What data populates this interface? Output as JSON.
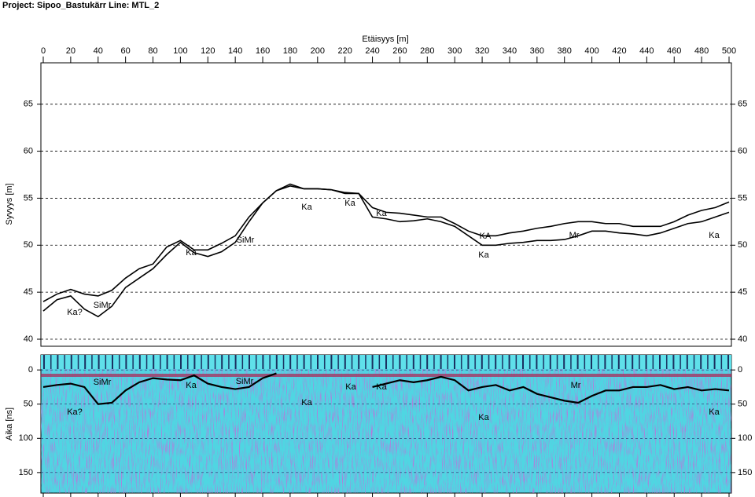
{
  "header": "Project: Sipoo_Bastukärr  Line: MTL_2",
  "chart_data": [
    {
      "type": "line",
      "x_label": "Etäisyys [m]",
      "y_label": "Syvyys [m]",
      "x": [
        0,
        10,
        20,
        30,
        40,
        50,
        60,
        70,
        80,
        90,
        100,
        110,
        120,
        130,
        140,
        150,
        160,
        170,
        180,
        190,
        200,
        210,
        220,
        230,
        240,
        250,
        260,
        270,
        280,
        290,
        300,
        310,
        320,
        330,
        340,
        350,
        360,
        370,
        380,
        390,
        400,
        410,
        420,
        430,
        440,
        450,
        460,
        470,
        480,
        490,
        500
      ],
      "xlim": [
        0,
        500
      ],
      "xticks": [
        0,
        20,
        40,
        60,
        80,
        100,
        120,
        140,
        160,
        180,
        200,
        220,
        240,
        260,
        280,
        300,
        320,
        340,
        360,
        380,
        400,
        420,
        440,
        460,
        480,
        500
      ],
      "ylim": [
        39.25,
        69.4
      ],
      "yticks": [
        40,
        45,
        50,
        55,
        60,
        65
      ],
      "grid": true,
      "series": [
        {
          "color": "#000000",
          "values": [
            44,
            44.8,
            45.3,
            44.8,
            44.6,
            45.2,
            46.5,
            47.5,
            48,
            49.8,
            50.5,
            49.5,
            49.5,
            50.2,
            51,
            53,
            54.5,
            55.8,
            56.3,
            56,
            56,
            55.9,
            55.6,
            55.5,
            54,
            53.5,
            53.4,
            53.2,
            53,
            53,
            52.3,
            51.5,
            51,
            51,
            51.3,
            51.5,
            51.8,
            52,
            52.3,
            52.5,
            52.5,
            52.3,
            52.3,
            52,
            52,
            52,
            52.5,
            53.2,
            53.7,
            54,
            54.6
          ]
        },
        {
          "color": "#000000",
          "values": [
            43,
            44.2,
            44.6,
            43.2,
            42.4,
            43.5,
            45.5,
            46.5,
            47.5,
            49,
            50.3,
            49.2,
            48.8,
            49.3,
            50.3,
            52.5,
            54.5,
            55.8,
            56.5,
            56,
            56,
            55.9,
            55.5,
            55.5,
            53,
            52.8,
            52.5,
            52.6,
            52.8,
            52.5,
            52,
            51,
            50,
            50,
            50.2,
            50.3,
            50.5,
            50.5,
            50.6,
            51,
            51.5,
            51.5,
            51.3,
            51.2,
            51,
            51.3,
            51.8,
            52.3,
            52.5,
            53,
            53.5
          ]
        }
      ],
      "annotations": [
        "Ka?",
        "SiMr",
        "Ka",
        "SiMr",
        "Ka",
        "Ka",
        "Ka",
        "KA",
        "Ka",
        "Mr",
        "Ka"
      ]
    },
    {
      "type": "line",
      "y_label": "Aika [ns]",
      "x": [
        0,
        10,
        20,
        30,
        40,
        50,
        60,
        70,
        80,
        90,
        100,
        110,
        120,
        130,
        140,
        150,
        160,
        170,
        180,
        190,
        200,
        210,
        220,
        230,
        240,
        250,
        260,
        270,
        280,
        290,
        300,
        310,
        320,
        330,
        340,
        350,
        360,
        370,
        380,
        390,
        400,
        410,
        420,
        430,
        440,
        450,
        460,
        470,
        480,
        490,
        500
      ],
      "xlim": [
        0,
        500
      ],
      "ylim": [
        180,
        -22
      ],
      "yticks": [
        0,
        50,
        100,
        150
      ],
      "grid": true,
      "series": [
        {
          "color": "#000000",
          "values": [
            25,
            22,
            20,
            25,
            50,
            48,
            30,
            18,
            12,
            14,
            15,
            8,
            20,
            25,
            28,
            25,
            12,
            5,
            null,
            null,
            null,
            null,
            null,
            null,
            25,
            20,
            15,
            18,
            15,
            10,
            15,
            30,
            25,
            22,
            30,
            25,
            35,
            40,
            45,
            48,
            38,
            30,
            30,
            25,
            25,
            22,
            28,
            25,
            30,
            28,
            30
          ]
        }
      ],
      "annotations": [
        "Ka?",
        "SiMr",
        "Ka",
        "SiMr",
        "Ka",
        "Ka",
        "Ka",
        "Ka",
        "Mr",
        "Ka"
      ]
    }
  ]
}
